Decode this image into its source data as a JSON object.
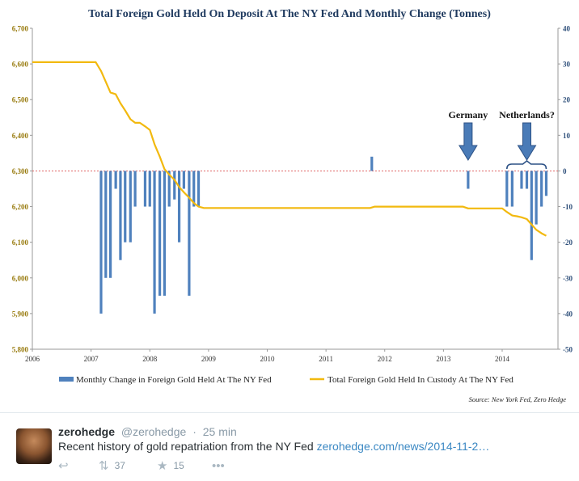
{
  "chart_data": {
    "type": "bar+line",
    "title": "Total Foreign Gold Held On Deposit At The NY Fed And Monthly Change (Tonnes)",
    "source": "Source: New York Fed, Zero Hedge",
    "x_axis": {
      "range": [
        2006,
        2014.95
      ],
      "ticks": [
        "2006",
        "2007",
        "2008",
        "2009",
        "2010",
        "2011",
        "2012",
        "2013",
        "2014"
      ]
    },
    "left_axis": {
      "range": [
        5800,
        6700
      ],
      "ticks": [
        "5,800",
        "5,900",
        "6,000",
        "6,100",
        "6,200",
        "6,300",
        "6,400",
        "6,500",
        "6,600",
        "6,700"
      ],
      "color": "#9a7d12"
    },
    "right_axis": {
      "range": [
        -50,
        40
      ],
      "ticks": [
        "-50",
        "-40",
        "-30",
        "-20",
        "-10",
        "0",
        "10",
        "20",
        "30",
        "40"
      ],
      "color": "#2e4f7a"
    },
    "series": [
      {
        "name": "Monthly Change in Foreign Gold Held At The NY Fed",
        "kind": "bar",
        "axis": "right",
        "color": "#4f81bd",
        "points": [
          [
            2007.17,
            -40
          ],
          [
            2007.25,
            -30
          ],
          [
            2007.33,
            -30
          ],
          [
            2007.42,
            -5
          ],
          [
            2007.5,
            -25
          ],
          [
            2007.58,
            -20
          ],
          [
            2007.67,
            -20
          ],
          [
            2007.75,
            -10
          ],
          [
            2007.92,
            -10
          ],
          [
            2008.0,
            -10
          ],
          [
            2008.08,
            -40
          ],
          [
            2008.17,
            -35
          ],
          [
            2008.25,
            -35
          ],
          [
            2008.33,
            -10
          ],
          [
            2008.42,
            -8
          ],
          [
            2008.5,
            -20
          ],
          [
            2008.58,
            -5
          ],
          [
            2008.67,
            -35
          ],
          [
            2008.75,
            -10
          ],
          [
            2008.83,
            -10
          ],
          [
            2011.78,
            4
          ],
          [
            2013.42,
            -5
          ],
          [
            2014.08,
            -10
          ],
          [
            2014.17,
            -10
          ],
          [
            2014.33,
            -5
          ],
          [
            2014.42,
            -5
          ],
          [
            2014.5,
            -25
          ],
          [
            2014.58,
            -15
          ],
          [
            2014.67,
            -10
          ],
          [
            2014.75,
            -7
          ]
        ]
      },
      {
        "name": "Total Foreign Gold Held In Custody At The NY Fed",
        "kind": "line",
        "axis": "left",
        "color": "#f2b90f",
        "points": [
          [
            2006.0,
            6605
          ],
          [
            2007.08,
            6605
          ],
          [
            2007.17,
            6580
          ],
          [
            2007.25,
            6550
          ],
          [
            2007.33,
            6520
          ],
          [
            2007.42,
            6515
          ],
          [
            2007.5,
            6490
          ],
          [
            2007.58,
            6470
          ],
          [
            2007.67,
            6445
          ],
          [
            2007.75,
            6435
          ],
          [
            2007.83,
            6435
          ],
          [
            2007.92,
            6425
          ],
          [
            2008.0,
            6415
          ],
          [
            2008.08,
            6375
          ],
          [
            2008.17,
            6340
          ],
          [
            2008.25,
            6305
          ],
          [
            2008.33,
            6290
          ],
          [
            2008.42,
            6275
          ],
          [
            2008.5,
            6255
          ],
          [
            2008.58,
            6240
          ],
          [
            2008.67,
            6225
          ],
          [
            2008.75,
            6210
          ],
          [
            2008.83,
            6200
          ],
          [
            2008.92,
            6196
          ],
          [
            2009.5,
            6196
          ],
          [
            2010.0,
            6196
          ],
          [
            2010.5,
            6196
          ],
          [
            2011.0,
            6196
          ],
          [
            2011.5,
            6196
          ],
          [
            2011.75,
            6196
          ],
          [
            2011.83,
            6200
          ],
          [
            2012.0,
            6200
          ],
          [
            2012.5,
            6200
          ],
          [
            2013.0,
            6200
          ],
          [
            2013.33,
            6200
          ],
          [
            2013.42,
            6195
          ],
          [
            2013.5,
            6195
          ],
          [
            2014.0,
            6195
          ],
          [
            2014.08,
            6185
          ],
          [
            2014.17,
            6175
          ],
          [
            2014.25,
            6173
          ],
          [
            2014.33,
            6170
          ],
          [
            2014.42,
            6165
          ],
          [
            2014.5,
            6150
          ],
          [
            2014.58,
            6135
          ],
          [
            2014.67,
            6125
          ],
          [
            2014.75,
            6118
          ]
        ]
      }
    ],
    "reference_line": {
      "axis": "right",
      "value": 0,
      "color": "#e06666",
      "style": "dashed"
    },
    "annotations": [
      {
        "label": "Germany",
        "x": 2013.42,
        "arrow": "down"
      },
      {
        "label": "Netherlands?",
        "x": 2014.42,
        "arrow": "down",
        "bracket": [
          2014.08,
          2014.75
        ]
      }
    ],
    "legend_position": "bottom",
    "grid": false
  },
  "tweet": {
    "name": "zerohedge",
    "handle": "@zerohedge",
    "separator": "·",
    "time": "25 min",
    "text": "Recent history of gold repatriation from the NY Fed",
    "link": "zerohedge.com/news/2014-11-2…",
    "retweets": "37",
    "favorites": "15",
    "icons": {
      "reply": "reply-icon",
      "retweet": "retweet-icon",
      "favorite": "star-icon",
      "more": "more-icon"
    }
  }
}
